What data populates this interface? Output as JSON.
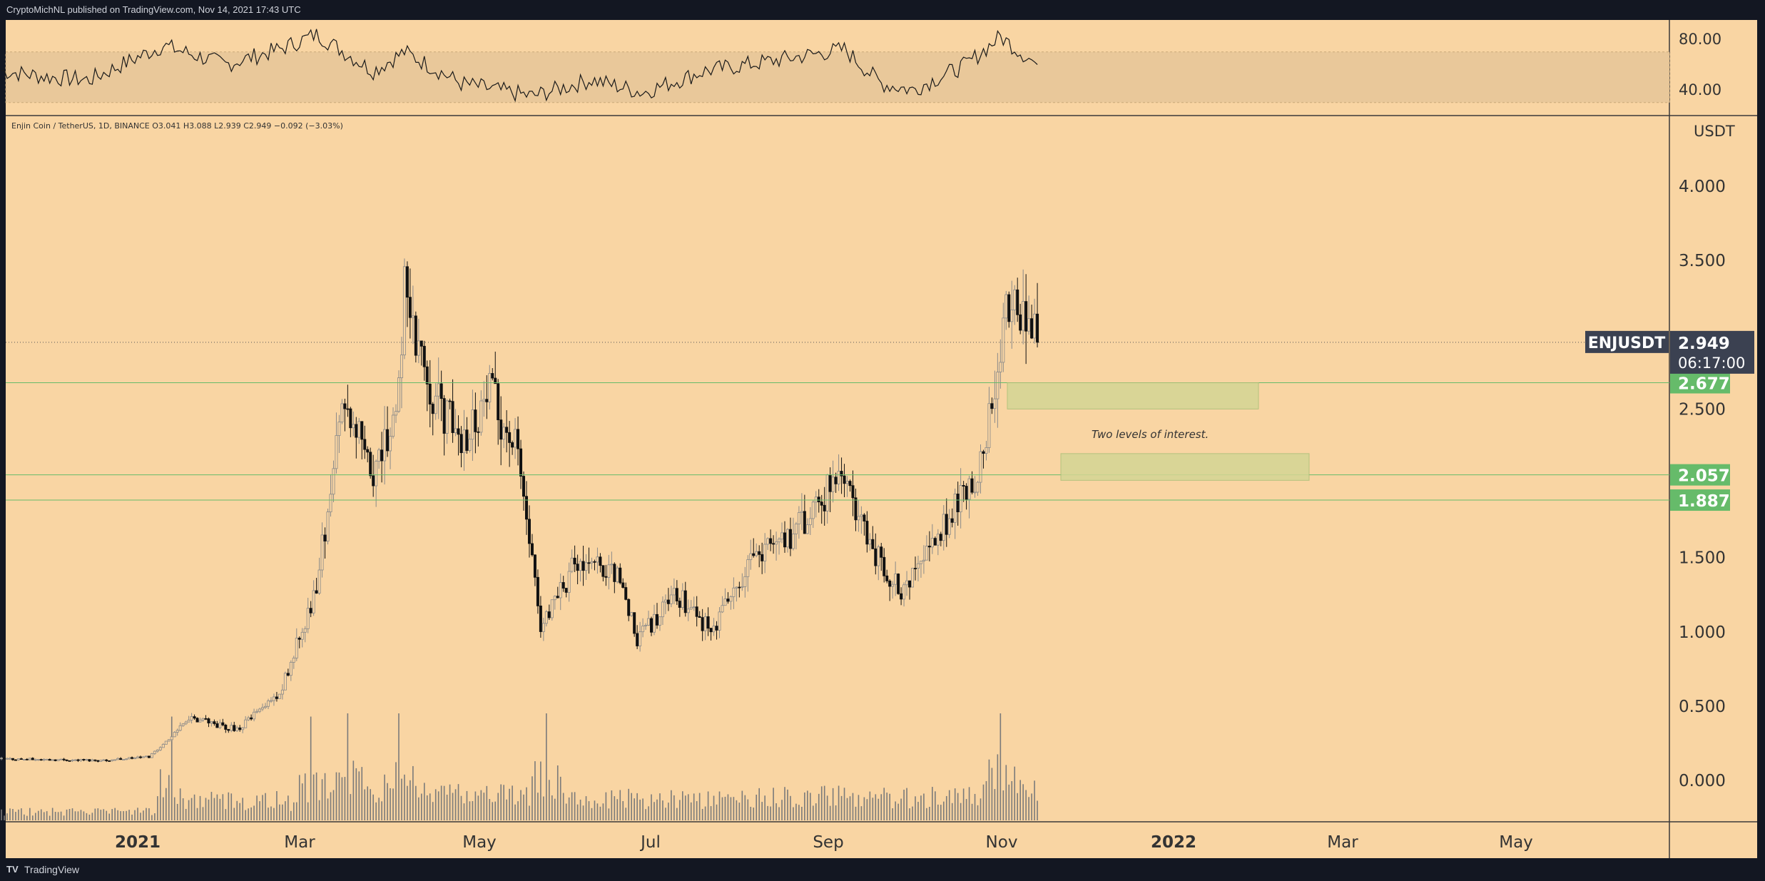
{
  "header": {
    "publish_info": "CryptoMichNL published on TradingView.com, Nov 14, 2021 17:43 UTC"
  },
  "symbol_info": {
    "text": "Enjin Coin / TetherUS, 1D, BINANCE  O3.041  H3.088  L2.939  C2.949  −0.092 (−3.03%)"
  },
  "price_axis": {
    "currency": "USDT",
    "ticks": [
      "4.000",
      "3.500",
      "2.500",
      "1.500",
      "1.000",
      "0.500",
      "0.000"
    ],
    "tick_values": [
      4.0,
      3.5,
      2.5,
      1.5,
      1.0,
      0.5,
      0.0
    ]
  },
  "rsi_axis": {
    "ticks": [
      "80.00",
      "40.00"
    ],
    "tick_values": [
      80,
      40
    ],
    "band": [
      30,
      70
    ]
  },
  "time_axis": {
    "labels": [
      "2021",
      "Mar",
      "May",
      "Jul",
      "Sep",
      "Nov",
      "2022",
      "Mar",
      "May"
    ],
    "bold": [
      true,
      false,
      false,
      false,
      false,
      false,
      true,
      false,
      false
    ]
  },
  "current_price": {
    "symbol": "ENJUSDT",
    "price": "2.949",
    "countdown": "06:17:00",
    "value": 2.949
  },
  "levels": [
    {
      "label": "2.677",
      "value": 2.677
    },
    {
      "label": "2.057",
      "value": 2.057
    },
    {
      "label": "1.887",
      "value": 1.887
    }
  ],
  "annotation": {
    "text": "Two levels of interest."
  },
  "footer": {
    "logo": "TV",
    "brand": "TradingView"
  },
  "colors": {
    "background": "#131722",
    "chart_bg": "#f9d5a3",
    "level_green": "#66bb6a",
    "zone_fill": "#d4d694",
    "candle": "#000000",
    "rsi_band": "#e9c89a"
  },
  "chart_data": {
    "type": "candlestick",
    "title": "",
    "xlabel": "",
    "ylabel": "USDT",
    "ylim": [
      0,
      4.0
    ],
    "close_path": [
      {
        "date": "2020-11-14",
        "close": 0.145
      },
      {
        "date": "2020-12-01",
        "close": 0.14
      },
      {
        "date": "2020-12-20",
        "close": 0.135
      },
      {
        "date": "2021-01-05",
        "close": 0.16
      },
      {
        "date": "2021-01-20",
        "close": 0.42
      },
      {
        "date": "2021-02-05",
        "close": 0.34
      },
      {
        "date": "2021-02-20",
        "close": 0.58
      },
      {
        "date": "2021-03-05",
        "close": 1.3
      },
      {
        "date": "2021-03-15",
        "close": 2.6
      },
      {
        "date": "2021-03-25",
        "close": 2.0
      },
      {
        "date": "2021-04-02",
        "close": 2.5
      },
      {
        "date": "2021-04-05",
        "close": 3.3
      },
      {
        "date": "2021-04-15",
        "close": 2.6
      },
      {
        "date": "2021-04-25",
        "close": 2.3
      },
      {
        "date": "2021-05-05",
        "close": 2.6
      },
      {
        "date": "2021-05-15",
        "close": 2.2
      },
      {
        "date": "2021-05-23",
        "close": 1.0
      },
      {
        "date": "2021-06-05",
        "close": 1.5
      },
      {
        "date": "2021-06-20",
        "close": 1.35
      },
      {
        "date": "2021-06-26",
        "close": 0.95
      },
      {
        "date": "2021-07-10",
        "close": 1.25
      },
      {
        "date": "2021-07-22",
        "close": 1.0
      },
      {
        "date": "2021-08-05",
        "close": 1.45
      },
      {
        "date": "2021-08-25",
        "close": 1.75
      },
      {
        "date": "2021-09-06",
        "close": 2.1
      },
      {
        "date": "2021-09-15",
        "close": 1.6
      },
      {
        "date": "2021-09-28",
        "close": 1.25
      },
      {
        "date": "2021-10-10",
        "close": 1.65
      },
      {
        "date": "2021-10-25",
        "close": 2.1
      },
      {
        "date": "2021-11-01",
        "close": 2.9
      },
      {
        "date": "2021-11-05",
        "close": 3.3
      },
      {
        "date": "2021-11-14",
        "close": 2.949
      }
    ],
    "volume_peak_dates": [
      "2021-01-13",
      "2021-03-03",
      "2021-03-16",
      "2021-04-03",
      "2021-05-25",
      "2021-11-01"
    ],
    "rsi_path": [
      {
        "date": "2020-11-14",
        "rsi": 55
      },
      {
        "date": "2020-12-01",
        "rsi": 50
      },
      {
        "date": "2020-12-15",
        "rsi": 48
      },
      {
        "date": "2021-01-10",
        "rsi": 75
      },
      {
        "date": "2021-02-01",
        "rsi": 60
      },
      {
        "date": "2021-02-20",
        "rsi": 72
      },
      {
        "date": "2021-03-05",
        "rsi": 84
      },
      {
        "date": "2021-03-25",
        "rsi": 55
      },
      {
        "date": "2021-04-05",
        "rsi": 70
      },
      {
        "date": "2021-04-25",
        "rsi": 45
      },
      {
        "date": "2021-05-20",
        "rsi": 35
      },
      {
        "date": "2021-06-10",
        "rsi": 48
      },
      {
        "date": "2021-06-28",
        "rsi": 38
      },
      {
        "date": "2021-07-20",
        "rsi": 55
      },
      {
        "date": "2021-08-10",
        "rsi": 62
      },
      {
        "date": "2021-09-07",
        "rsi": 72
      },
      {
        "date": "2021-09-20",
        "rsi": 45
      },
      {
        "date": "2021-10-01",
        "rsi": 40
      },
      {
        "date": "2021-10-20",
        "rsi": 60
      },
      {
        "date": "2021-11-01",
        "rsi": 82
      },
      {
        "date": "2021-11-08",
        "rsi": 70
      },
      {
        "date": "2021-11-14",
        "rsi": 60
      }
    ]
  }
}
